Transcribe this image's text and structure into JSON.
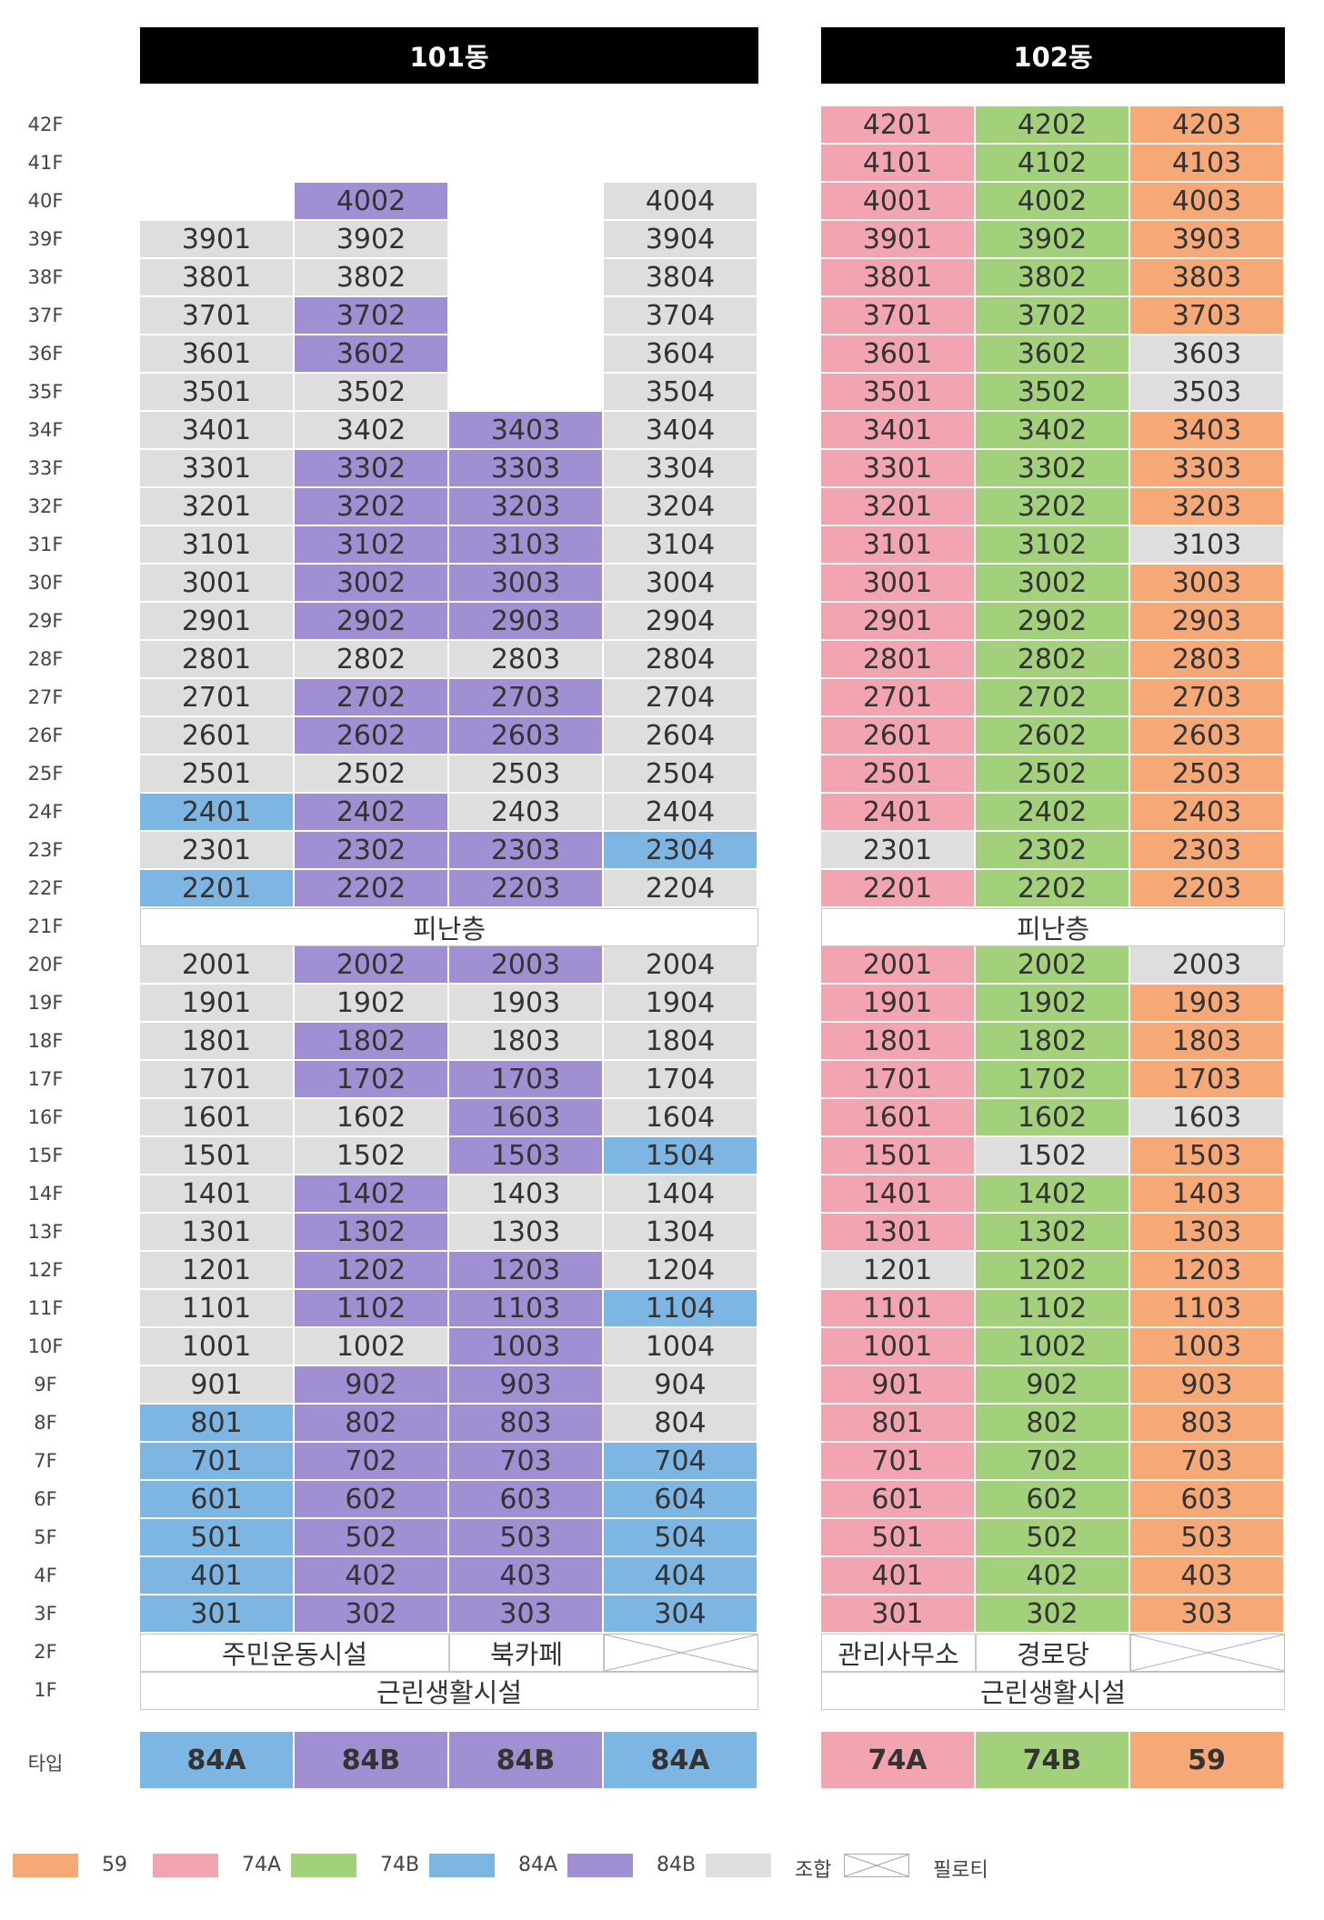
{
  "colors": {
    "59": "#f6a877",
    "74A": "#f3a4b1",
    "74B": "#a3d07b",
    "84A": "#7db5e3",
    "84B": "#a08fd3",
    "union": "#dedede"
  },
  "buildings": [
    {
      "name": "101동",
      "columns": 4,
      "col_types": [
        "84A",
        "84B",
        "84B",
        "84A"
      ],
      "type_labels": [
        "84A",
        "84B",
        "84B",
        "84A"
      ],
      "units": {
        "40": [
          null,
          "84B",
          null,
          "U"
        ],
        "39": [
          "U",
          "U",
          null,
          "U"
        ],
        "38": [
          "U",
          "U",
          null,
          "U"
        ],
        "37": [
          "U",
          "84B",
          null,
          "U"
        ],
        "36": [
          "U",
          "84B",
          null,
          "U"
        ],
        "35": [
          "U",
          "U",
          null,
          "U"
        ],
        "34": [
          "U",
          "U",
          "84B",
          "U"
        ],
        "33": [
          "U",
          "84B",
          "84B",
          "U"
        ],
        "32": [
          "U",
          "84B",
          "84B",
          "U"
        ],
        "31": [
          "U",
          "84B",
          "84B",
          "U"
        ],
        "30": [
          "U",
          "84B",
          "84B",
          "U"
        ],
        "29": [
          "U",
          "84B",
          "84B",
          "U"
        ],
        "28": [
          "U",
          "U",
          "U",
          "U"
        ],
        "27": [
          "U",
          "84B",
          "84B",
          "U"
        ],
        "26": [
          "U",
          "84B",
          "84B",
          "U"
        ],
        "25": [
          "U",
          "U",
          "U",
          "U"
        ],
        "24": [
          "84A",
          "84B",
          "U",
          "U"
        ],
        "23": [
          "U",
          "84B",
          "84B",
          "84A"
        ],
        "22": [
          "84A",
          "84B",
          "84B",
          "U"
        ],
        "20": [
          "U",
          "84B",
          "84B",
          "U"
        ],
        "19": [
          "U",
          "U",
          "U",
          "U"
        ],
        "18": [
          "U",
          "84B",
          "U",
          "U"
        ],
        "17": [
          "U",
          "84B",
          "84B",
          "U"
        ],
        "16": [
          "U",
          "U",
          "84B",
          "U"
        ],
        "15": [
          "U",
          "U",
          "84B",
          "84A"
        ],
        "14": [
          "U",
          "84B",
          "U",
          "U"
        ],
        "13": [
          "U",
          "84B",
          "U",
          "U"
        ],
        "12": [
          "U",
          "84B",
          "84B",
          "U"
        ],
        "11": [
          "U",
          "84B",
          "84B",
          "84A"
        ],
        "10": [
          "U",
          "U",
          "84B",
          "U"
        ],
        "9": [
          "U",
          "84B",
          "84B",
          "U"
        ],
        "8": [
          "84A",
          "84B",
          "84B",
          "U"
        ],
        "7": [
          "84A",
          "84B",
          "84B",
          "84A"
        ],
        "6": [
          "84A",
          "84B",
          "84B",
          "84A"
        ],
        "5": [
          "84A",
          "84B",
          "84B",
          "84A"
        ],
        "4": [
          "84A",
          "84B",
          "84B",
          "84A"
        ],
        "3": [
          "84A",
          "84B",
          "84B",
          "84A"
        ]
      },
      "refuge": "피난층",
      "f2": [
        "주민운동시설",
        "북카페"
      ],
      "f1": "근린생활시설"
    },
    {
      "name": "102동",
      "columns": 3,
      "col_types": [
        "74A",
        "74B",
        "59"
      ],
      "type_labels": [
        "74A",
        "74B",
        "59"
      ],
      "units": {
        "42": [
          "74A",
          "74B",
          "59"
        ],
        "41": [
          "74A",
          "74B",
          "59"
        ],
        "40": [
          "74A",
          "74B",
          "59"
        ],
        "39": [
          "74A",
          "74B",
          "59"
        ],
        "38": [
          "74A",
          "74B",
          "59"
        ],
        "37": [
          "74A",
          "74B",
          "59"
        ],
        "36": [
          "74A",
          "74B",
          "U"
        ],
        "35": [
          "74A",
          "74B",
          "U"
        ],
        "34": [
          "74A",
          "74B",
          "59"
        ],
        "33": [
          "74A",
          "74B",
          "59"
        ],
        "32": [
          "74A",
          "74B",
          "59"
        ],
        "31": [
          "74A",
          "74B",
          "U"
        ],
        "30": [
          "74A",
          "74B",
          "59"
        ],
        "29": [
          "74A",
          "74B",
          "59"
        ],
        "28": [
          "74A",
          "74B",
          "59"
        ],
        "27": [
          "74A",
          "74B",
          "59"
        ],
        "26": [
          "74A",
          "74B",
          "59"
        ],
        "25": [
          "74A",
          "74B",
          "59"
        ],
        "24": [
          "74A",
          "74B",
          "59"
        ],
        "23": [
          "U",
          "74B",
          "59"
        ],
        "22": [
          "74A",
          "74B",
          "59"
        ],
        "20": [
          "74A",
          "74B",
          "U"
        ],
        "19": [
          "74A",
          "74B",
          "59"
        ],
        "18": [
          "74A",
          "74B",
          "59"
        ],
        "17": [
          "74A",
          "74B",
          "59"
        ],
        "16": [
          "74A",
          "74B",
          "U"
        ],
        "15": [
          "74A",
          "U",
          "59"
        ],
        "14": [
          "74A",
          "74B",
          "59"
        ],
        "13": [
          "74A",
          "74B",
          "59"
        ],
        "12": [
          "U",
          "74B",
          "59"
        ],
        "11": [
          "74A",
          "74B",
          "59"
        ],
        "10": [
          "74A",
          "74B",
          "59"
        ],
        "9": [
          "74A",
          "74B",
          "59"
        ],
        "8": [
          "74A",
          "74B",
          "59"
        ],
        "7": [
          "74A",
          "74B",
          "59"
        ],
        "6": [
          "74A",
          "74B",
          "59"
        ],
        "5": [
          "74A",
          "74B",
          "59"
        ],
        "4": [
          "74A",
          "74B",
          "59"
        ],
        "3": [
          "74A",
          "74B",
          "59"
        ]
      },
      "refuge": "피난층",
      "f2": [
        "관리사무소",
        "경로당"
      ],
      "f1": "근린생활시설"
    }
  ],
  "type_row_label": "타입",
  "legend": [
    {
      "key": "59",
      "label": "59"
    },
    {
      "key": "74A",
      "label": "74A"
    },
    {
      "key": "74B",
      "label": "74B"
    },
    {
      "key": "84A",
      "label": "84A"
    },
    {
      "key": "84B",
      "label": "84B"
    },
    {
      "key": "union",
      "label": "조합"
    },
    {
      "key": "pilotis",
      "label": "필로티"
    }
  ]
}
